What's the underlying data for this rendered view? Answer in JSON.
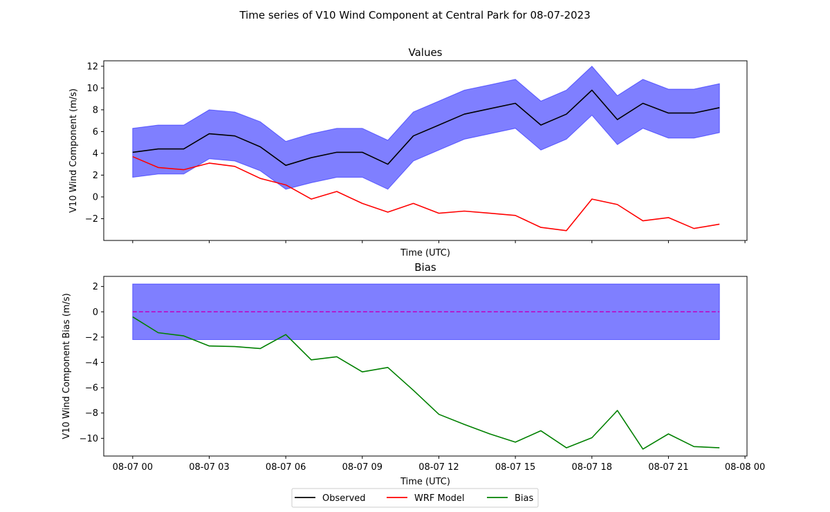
{
  "figure": {
    "title": "Time series of V10 Wind Component at Central Park for 08-07-2023"
  },
  "legend": {
    "placement": "bottom-center",
    "items": [
      {
        "label": "Observed",
        "color": "#000000"
      },
      {
        "label": "WRF Model",
        "color": "#ff0000"
      },
      {
        "label": "Bias",
        "color": "#008000"
      }
    ]
  },
  "chart_data": [
    {
      "type": "line",
      "title": "Values",
      "xlabel": "Time (UTC)",
      "ylabel": "V10 Wind Component (m/s)",
      "x": [
        "08-07 00:00",
        "08-07 01:00",
        "08-07 02:00",
        "08-07 03:00",
        "08-07 04:00",
        "08-07 05:00",
        "08-07 06:00",
        "08-07 07:00",
        "08-07 08:00",
        "08-07 09:00",
        "08-07 10:00",
        "08-07 11:00",
        "08-07 12:00",
        "08-07 13:00",
        "08-07 14:00",
        "08-07 15:00",
        "08-07 16:00",
        "08-07 17:00",
        "08-07 18:00",
        "08-07 19:00",
        "08-07 20:00",
        "08-07 21:00",
        "08-07 22:00",
        "08-07 23:00"
      ],
      "xlim": [
        "08-07 00:00",
        "08-08 00:00"
      ],
      "ylim": [
        -4,
        12.5
      ],
      "yticks": [
        "12",
        "10",
        "8",
        "6",
        "4",
        "2",
        "0",
        "−2"
      ],
      "ytick_values": [
        12,
        10,
        8,
        6,
        4,
        2,
        0,
        -2
      ],
      "show_xticklabels": false,
      "series": [
        {
          "name": "Observed",
          "color": "#000000",
          "values": [
            4.1,
            4.4,
            4.4,
            5.8,
            5.6,
            4.6,
            2.9,
            3.6,
            4.1,
            4.1,
            3.0,
            5.6,
            6.6,
            7.6,
            8.1,
            8.6,
            6.6,
            7.6,
            9.8,
            7.1,
            8.6,
            7.7,
            7.7,
            8.2
          ]
        },
        {
          "name": "WRF Model",
          "color": "#ff0000",
          "values": [
            3.7,
            2.7,
            2.5,
            3.1,
            2.8,
            1.7,
            1.1,
            -0.2,
            0.5,
            -0.6,
            -1.4,
            -0.6,
            -1.5,
            -1.3,
            -1.5,
            -1.7,
            -2.8,
            -3.1,
            -0.2,
            -0.7,
            -2.2,
            -1.9,
            -2.9,
            -2.5
          ]
        }
      ],
      "band": {
        "color": "#0000ff",
        "opacity": 0.5,
        "lower": [
          1.8,
          2.1,
          2.1,
          3.5,
          3.3,
          2.4,
          0.7,
          1.3,
          1.8,
          1.8,
          0.7,
          3.3,
          4.3,
          5.3,
          5.8,
          6.3,
          4.3,
          5.3,
          7.5,
          4.8,
          6.3,
          5.4,
          5.4,
          5.9
        ],
        "upper": [
          6.3,
          6.6,
          6.6,
          8.0,
          7.8,
          6.9,
          5.1,
          5.8,
          6.3,
          6.3,
          5.2,
          7.8,
          8.8,
          9.8,
          10.3,
          10.8,
          8.8,
          9.8,
          12.0,
          9.3,
          10.8,
          9.9,
          9.9,
          10.4
        ]
      }
    },
    {
      "type": "line",
      "title": "Bias",
      "xlabel": "Time (UTC)",
      "ylabel": "V10 Wind Component Bias (m/s)",
      "x": [
        "08-07 00:00",
        "08-07 01:00",
        "08-07 02:00",
        "08-07 03:00",
        "08-07 04:00",
        "08-07 05:00",
        "08-07 06:00",
        "08-07 07:00",
        "08-07 08:00",
        "08-07 09:00",
        "08-07 10:00",
        "08-07 11:00",
        "08-07 12:00",
        "08-07 13:00",
        "08-07 14:00",
        "08-07 15:00",
        "08-07 16:00",
        "08-07 17:00",
        "08-07 18:00",
        "08-07 19:00",
        "08-07 20:00",
        "08-07 21:00",
        "08-07 22:00",
        "08-07 23:00"
      ],
      "xlim": [
        "08-07 00:00",
        "08-08 00:00"
      ],
      "ylim": [
        -11.4,
        2.8
      ],
      "xtick_labels": [
        "08-07 00",
        "08-07 03",
        "08-07 06",
        "08-07 09",
        "08-07 12",
        "08-07 15",
        "08-07 18",
        "08-07 21",
        "08-08 00"
      ],
      "yticks": [
        "2",
        "0",
        "−2",
        "−4",
        "−6",
        "−8",
        "−10"
      ],
      "ytick_values": [
        2,
        0,
        -2,
        -4,
        -6,
        -8,
        -10
      ],
      "show_xticklabels": true,
      "series": [
        {
          "name": "Bias",
          "color": "#008000",
          "values": [
            -0.4,
            -1.65,
            -1.9,
            -2.7,
            -2.75,
            -2.9,
            -1.8,
            -3.8,
            -3.55,
            -4.75,
            -4.4,
            -6.2,
            -8.1,
            -8.9,
            -9.65,
            -10.3,
            -9.4,
            -10.75,
            -9.95,
            -7.8,
            -10.85,
            -9.65,
            -10.65,
            -10.75
          ]
        }
      ],
      "zero_line": {
        "y": 0,
        "color": "#bf00bf",
        "style": "dashed"
      },
      "band": {
        "color": "#0000ff",
        "opacity": 0.5,
        "lower_const": -2.2,
        "upper_const": 2.2
      }
    }
  ]
}
